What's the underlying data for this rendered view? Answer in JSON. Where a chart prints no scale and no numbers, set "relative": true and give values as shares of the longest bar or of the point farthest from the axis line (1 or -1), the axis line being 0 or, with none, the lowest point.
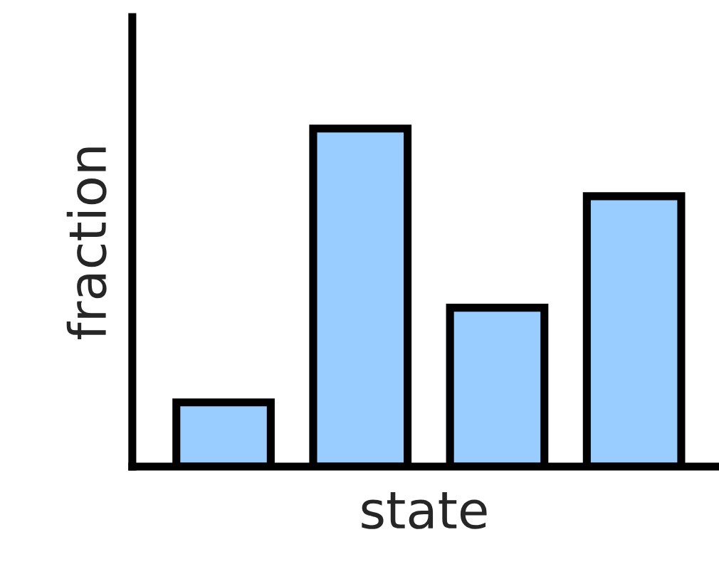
{
  "chart_data": {
    "type": "bar",
    "relative": true,
    "xlabel": "state",
    "ylabel": "fraction",
    "categories": [
      null,
      null,
      null,
      null
    ],
    "values": [
      0.19,
      1,
      0.47,
      0.8
    ],
    "color": "#99ccff",
    "grid": false,
    "legend": false
  }
}
